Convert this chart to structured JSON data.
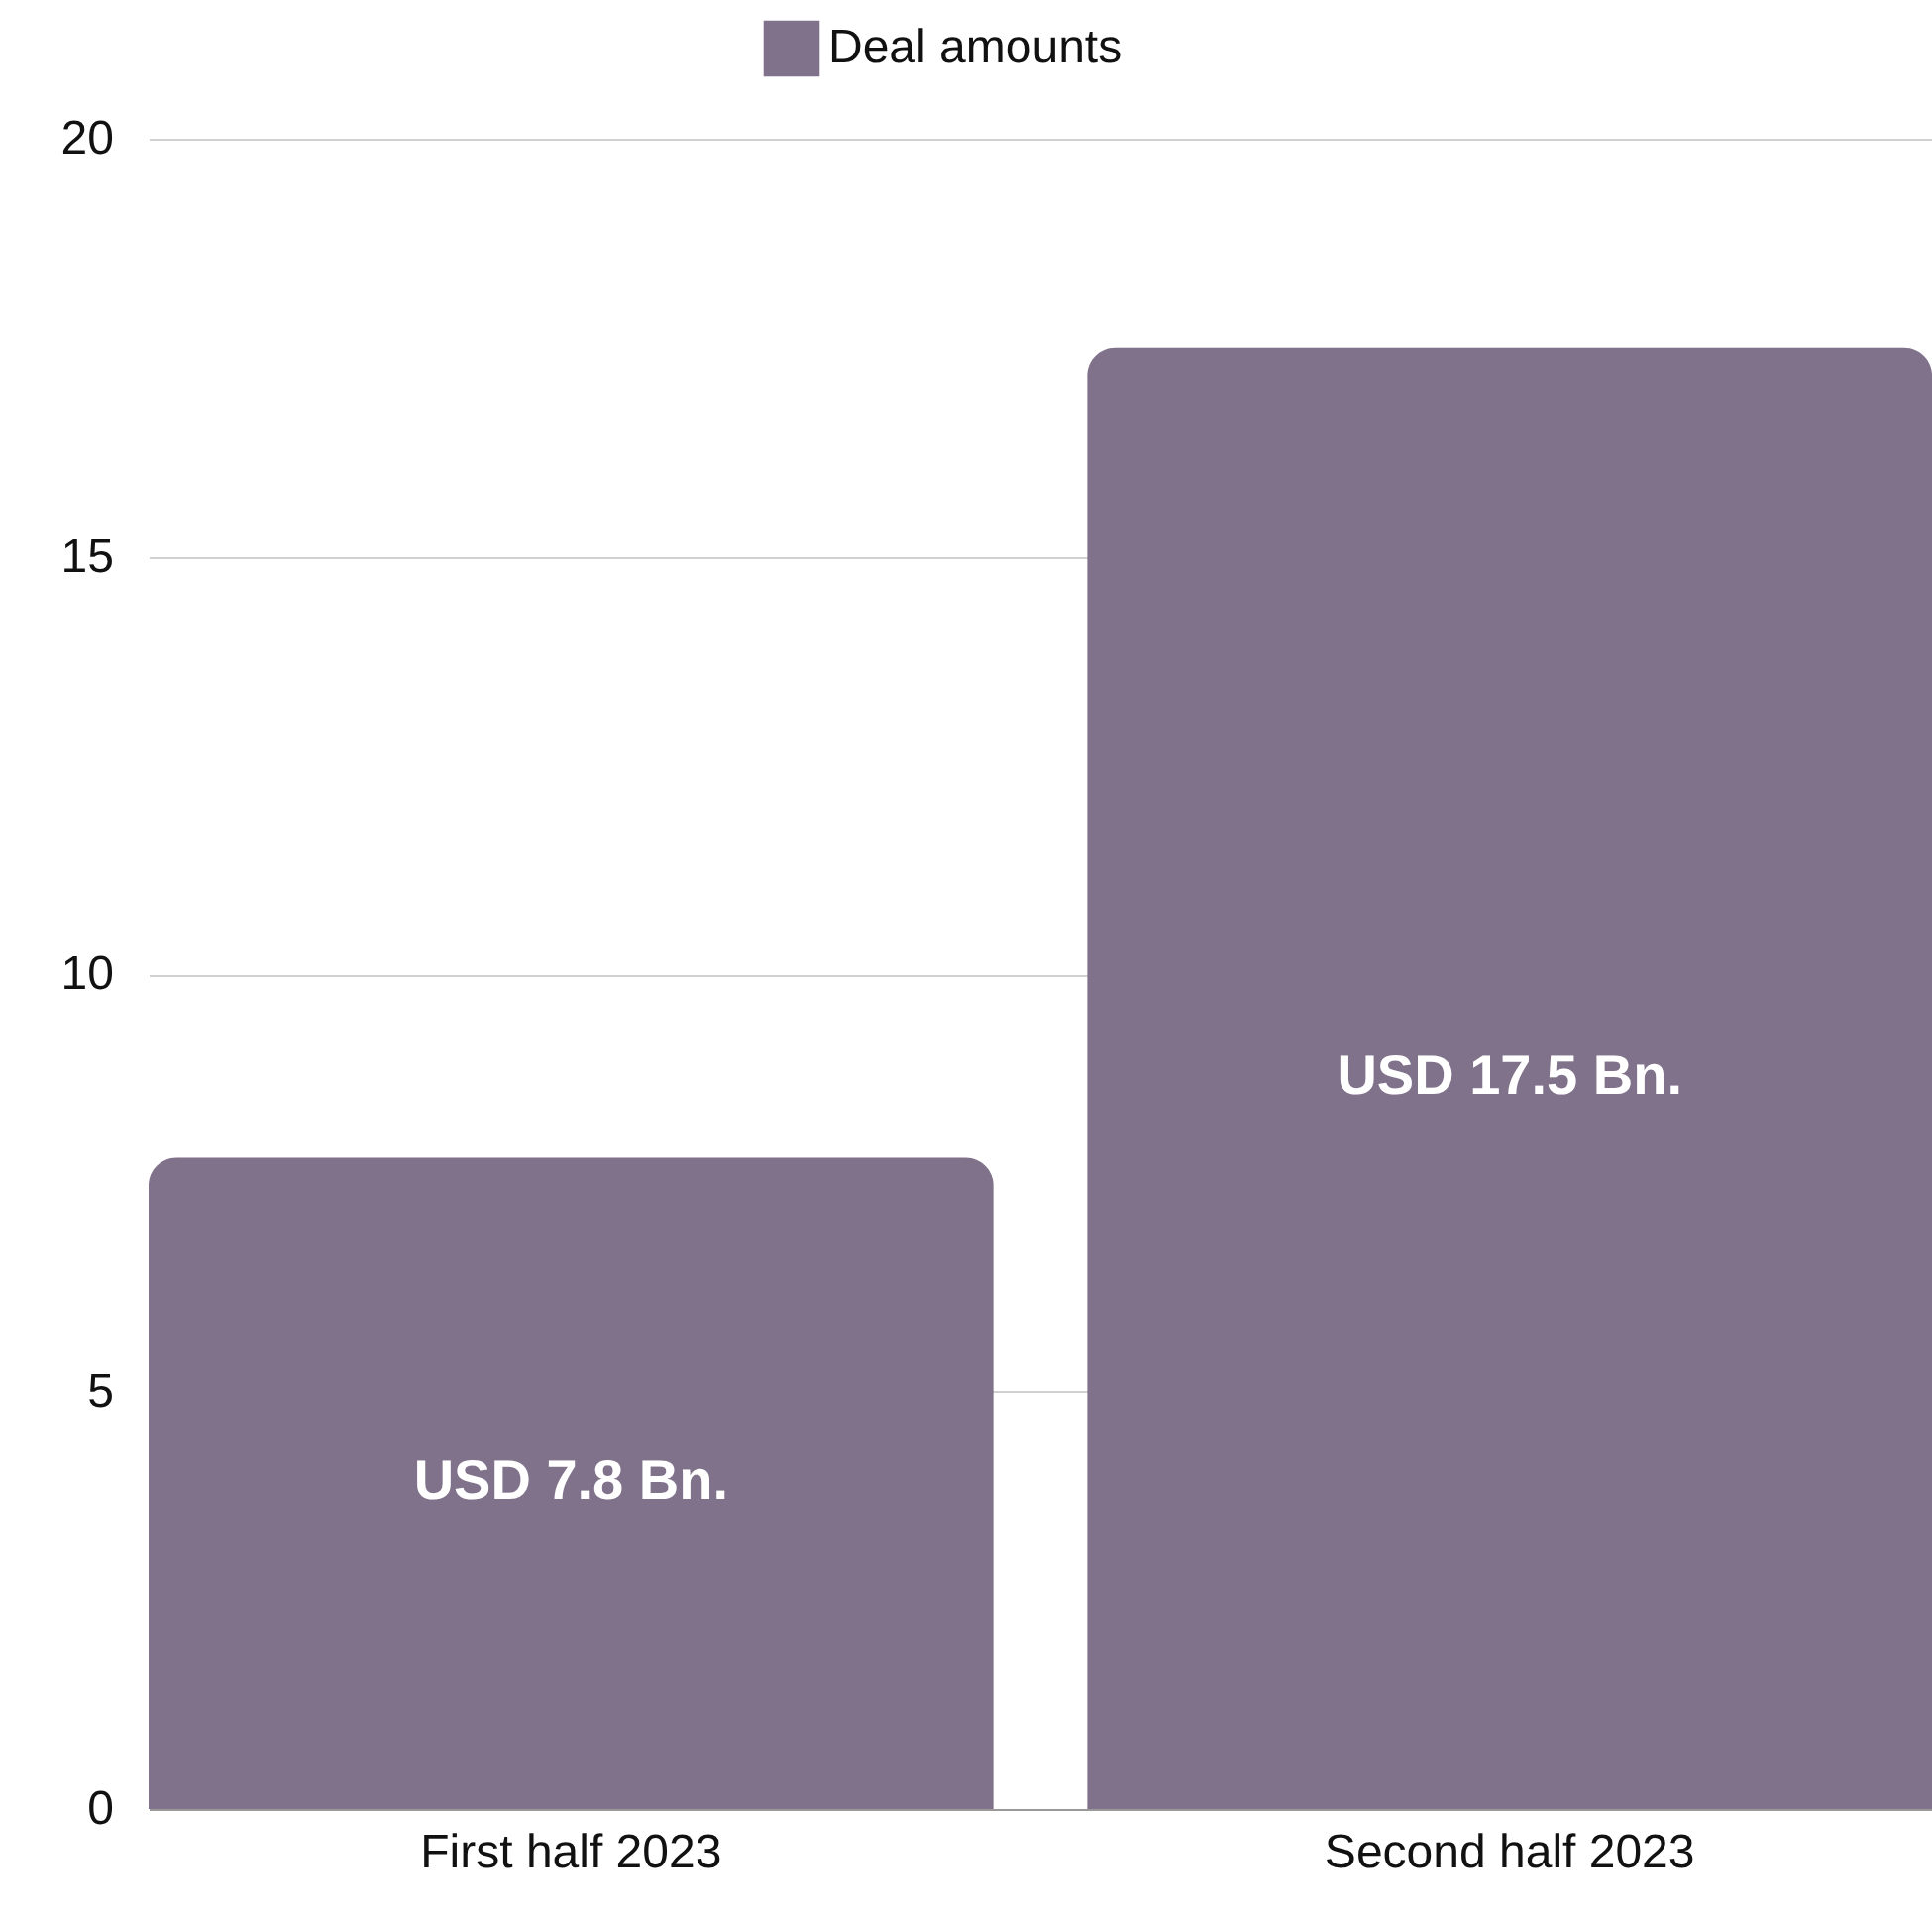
{
  "chart_data": {
    "type": "bar",
    "categories": [
      "First half 2023",
      "Second half 2023"
    ],
    "series": [
      {
        "name": "Deal amounts",
        "color": "#80728a",
        "values": [
          7.8,
          17.5
        ],
        "value_labels": [
          "USD 7.8 Bn.",
          "USD 17.5 Bn."
        ]
      }
    ],
    "ylim": [
      0,
      20
    ],
    "yticks": [
      0,
      5,
      10,
      15,
      20
    ],
    "grid": "y",
    "legend": "top"
  }
}
